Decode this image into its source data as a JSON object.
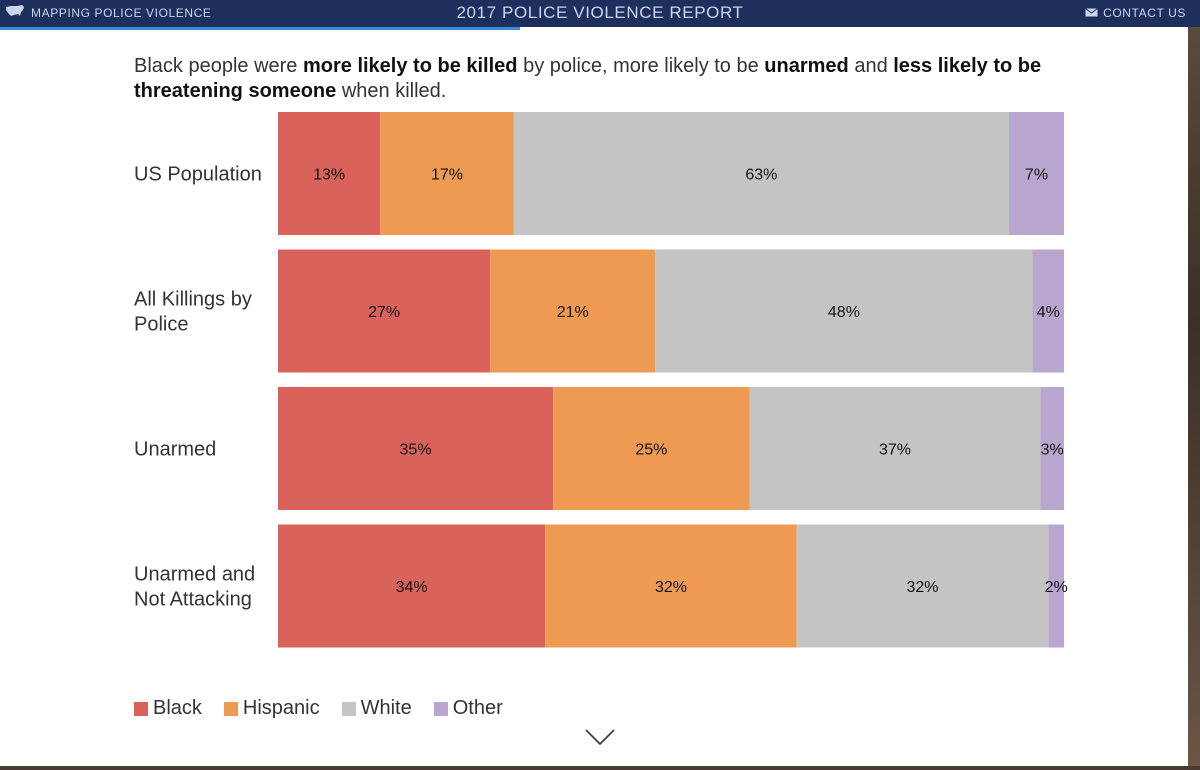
{
  "header": {
    "brand_label": "MAPPING POLICE VIOLENCE",
    "title": "2017 POLICE VIOLENCE REPORT",
    "contact_label": "CONTACT US"
  },
  "headline": {
    "t1": "Black people were ",
    "b1": "more likely to be killed",
    "t2": " by police, more likely to be ",
    "b2": "unarmed",
    "t3": " and ",
    "b3": "less likely to be threatening someone",
    "t4": " when killed."
  },
  "colors": {
    "Black": "#d9625a",
    "Hispanic": "#ef9a52",
    "White": "#c4c4c4",
    "Other": "#b9a6cf",
    "header_bg": "#1f2f5c",
    "accent": "#3a8dd8"
  },
  "icons": {
    "brand": "usa-map-icon",
    "contact": "envelope-icon",
    "scroll": "chevron-down-icon"
  },
  "chart_data": {
    "type": "bar",
    "stacked": true,
    "orientation": "horizontal",
    "normalized": true,
    "categories": [
      [
        "US Population"
      ],
      [
        "All Killings by",
        "Police"
      ],
      [
        "Unarmed"
      ],
      [
        "Unarmed and",
        "Not Attacking"
      ]
    ],
    "series": [
      {
        "name": "Black",
        "values": [
          13,
          27,
          35,
          34
        ],
        "labels": [
          "13%",
          "27%",
          "35%",
          "34%"
        ]
      },
      {
        "name": "Hispanic",
        "values": [
          17,
          21,
          25,
          32
        ],
        "labels": [
          "17%",
          "21%",
          "25%",
          "32%"
        ]
      },
      {
        "name": "White",
        "values": [
          63,
          48,
          37,
          32
        ],
        "labels": [
          "63%",
          "48%",
          "37%",
          "32%"
        ]
      },
      {
        "name": "Other",
        "values": [
          7,
          4,
          3,
          2
        ],
        "labels": [
          "7%",
          "4%",
          "3%",
          "2%"
        ]
      }
    ],
    "legend_position": "bottom-left",
    "grid": false
  }
}
